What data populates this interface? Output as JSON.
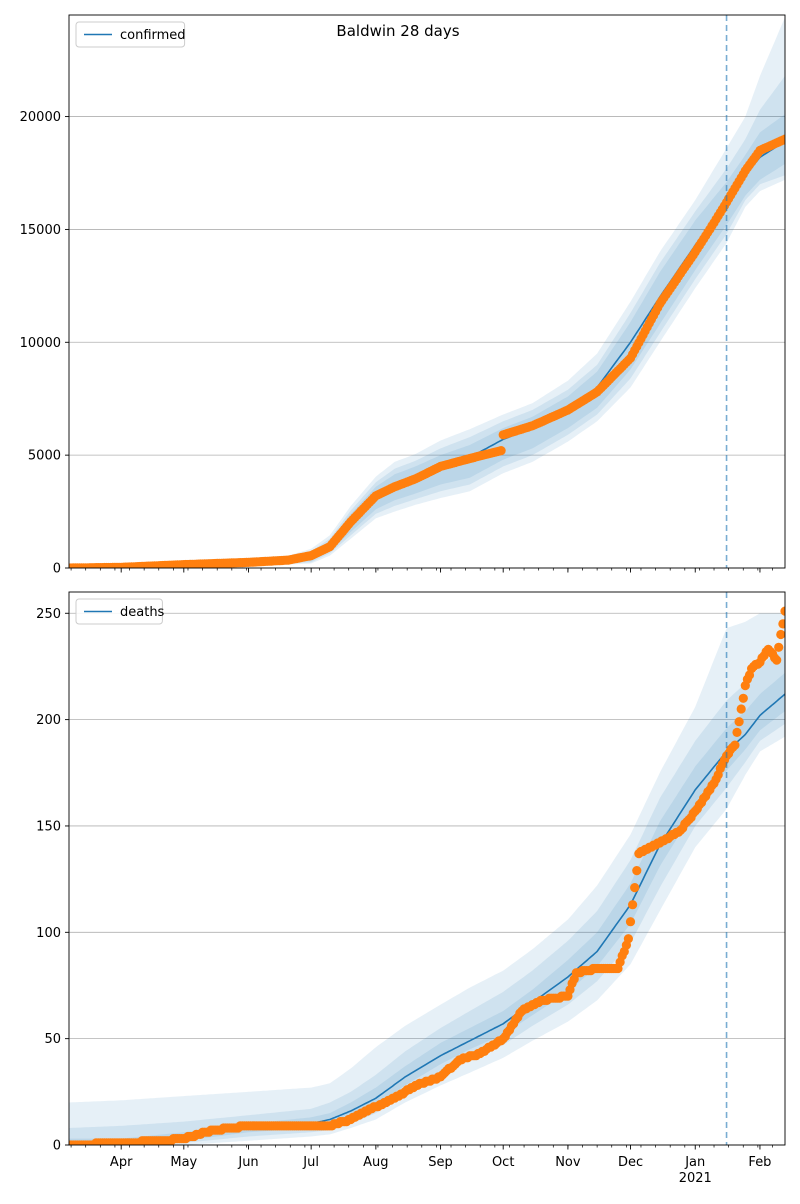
{
  "title": "Baldwin 28 days",
  "colors": {
    "model_line": "#1f77b4",
    "band": "#1f77b4",
    "observed": "#ff7f0e",
    "grid": "#b0b0b0",
    "divider": "#1f77b4"
  },
  "x_axis": {
    "start": "2020-03-07",
    "end": "2021-02-13",
    "divider_date": "2021-01-16",
    "month_ticks": [
      {
        "label": "Apr",
        "date": "2020-04-01"
      },
      {
        "label": "May",
        "date": "2020-05-01"
      },
      {
        "label": "Jun",
        "date": "2020-06-01"
      },
      {
        "label": "Jul",
        "date": "2020-07-01"
      },
      {
        "label": "Aug",
        "date": "2020-08-01"
      },
      {
        "label": "Sep",
        "date": "2020-09-01"
      },
      {
        "label": "Oct",
        "date": "2020-10-01"
      },
      {
        "label": "Nov",
        "date": "2020-11-01"
      },
      {
        "label": "Dec",
        "date": "2020-12-01"
      },
      {
        "label": "Jan",
        "date": "2021-01-01"
      },
      {
        "label": "Feb",
        "date": "2021-02-01"
      }
    ],
    "year_label": "2021",
    "year_label_date": "2021-01-01"
  },
  "chart_data": [
    {
      "type": "line",
      "legend": "confirmed",
      "legend_position": "upper-left",
      "grid": "y",
      "ylim": [
        0,
        24500
      ],
      "yticks": [
        0,
        5000,
        10000,
        15000,
        20000
      ],
      "model": {
        "dates": [
          "2020-03-07",
          "2020-04-01",
          "2020-05-01",
          "2020-06-01",
          "2020-06-20",
          "2020-07-01",
          "2020-07-10",
          "2020-07-20",
          "2020-08-01",
          "2020-08-10",
          "2020-08-20",
          "2020-09-01",
          "2020-09-15",
          "2020-10-01",
          "2020-10-15",
          "2020-11-01",
          "2020-11-15",
          "2020-12-01",
          "2020-12-15",
          "2021-01-01",
          "2021-01-16",
          "2021-01-25",
          "2021-02-01",
          "2021-02-13"
        ],
        "values": [
          0,
          30,
          150,
          250,
          350,
          500,
          1000,
          2100,
          3200,
          3700,
          4000,
          4500,
          4900,
          5700,
          6200,
          7000,
          8000,
          10000,
          12000,
          14300,
          16200,
          17400,
          18200,
          18900
        ],
        "bands": [
          {
            "lower": [
              0,
              0,
              50,
              150,
              250,
              300,
              750,
              1600,
              2600,
              3000,
              3300,
              3700,
              4000,
              4800,
              5300,
              6200,
              7100,
              8800,
              10800,
              13200,
              15200,
              16500,
              17200,
              17900
            ],
            "upper": [
              0,
              80,
              250,
              350,
              450,
              650,
              1200,
              2400,
              3600,
              4150,
              4500,
              5000,
              5450,
              6200,
              6700,
              7600,
              8700,
              10900,
              13100,
              15400,
              17100,
              18300,
              19300,
              20100
            ]
          },
          {
            "lower": [
              0,
              0,
              20,
              100,
              200,
              250,
              650,
              1450,
              2400,
              2750,
              3050,
              3400,
              3700,
              4500,
              5000,
              5900,
              6800,
              8400,
              10400,
              12800,
              14800,
              16300,
              17000,
              17400
            ],
            "upper": [
              0,
              100,
              300,
              400,
              500,
              750,
              1300,
              2550,
              3800,
              4400,
              4750,
              5300,
              5800,
              6500,
              7000,
              7900,
              9000,
              11300,
              13500,
              15800,
              17700,
              19000,
              20300,
              21800
            ]
          },
          {
            "lower": [
              0,
              0,
              0,
              50,
              150,
              200,
              550,
              1300,
              2200,
              2500,
              2800,
              3100,
              3400,
              4200,
              4700,
              5600,
              6500,
              8000,
              10000,
              12400,
              14400,
              16000,
              16700,
              17200
            ],
            "upper": [
              0,
              150,
              350,
              450,
              550,
              850,
              1450,
              2750,
              4050,
              4700,
              5050,
              5650,
              6150,
              6800,
              7300,
              8300,
              9500,
              11800,
              14000,
              16300,
              18600,
              20000,
              21800,
              24400
            ]
          }
        ]
      },
      "observed": {
        "dates": [
          "2020-03-07",
          "2020-04-01",
          "2020-05-01",
          "2020-06-01",
          "2020-06-20",
          "2020-07-01",
          "2020-07-10",
          "2020-07-20",
          "2020-08-01",
          "2020-08-10",
          "2020-08-20",
          "2020-09-01",
          "2020-09-15",
          "2020-09-30",
          "2020-10-01",
          "2020-10-15",
          "2020-11-01",
          "2020-11-15",
          "2020-12-01",
          "2020-12-15",
          "2021-01-01",
          "2021-01-10",
          "2021-01-16",
          "2021-01-25",
          "2021-02-01",
          "2021-02-13"
        ],
        "values": [
          0,
          30,
          150,
          250,
          350,
          550,
          950,
          2050,
          3200,
          3600,
          3950,
          4500,
          4850,
          5200,
          5900,
          6300,
          7000,
          7800,
          9300,
          11700,
          14000,
          15300,
          16200,
          17600,
          18500,
          19000
        ]
      }
    },
    {
      "type": "line",
      "legend": "deaths",
      "legend_position": "upper-left",
      "grid": "y",
      "ylim": [
        0,
        260
      ],
      "yticks": [
        0,
        50,
        100,
        150,
        200,
        250
      ],
      "model": {
        "dates": [
          "2020-03-07",
          "2020-04-01",
          "2020-05-01",
          "2020-06-01",
          "2020-07-01",
          "2020-07-10",
          "2020-07-20",
          "2020-08-01",
          "2020-08-15",
          "2020-09-01",
          "2020-09-15",
          "2020-10-01",
          "2020-10-15",
          "2020-11-01",
          "2020-11-15",
          "2020-12-01",
          "2020-12-15",
          "2021-01-01",
          "2021-01-16",
          "2021-01-25",
          "2021-02-01",
          "2021-02-13"
        ],
        "values": [
          0,
          1,
          4,
          8,
          10,
          12,
          16,
          22,
          32,
          42,
          49,
          57,
          67,
          79,
          91,
          113,
          141,
          167,
          185,
          193,
          202,
          212
        ],
        "bands": [
          {
            "lower": [
              0,
              0,
              2,
              6,
              8,
              9,
              13,
              19,
              28,
              38,
              45,
              52,
              61,
              72,
              84,
              104,
              131,
              158,
              176,
              186,
              195,
              204
            ],
            "upper": [
              3,
              3,
              6,
              10,
              13,
              15,
              20,
              27,
              37,
              48,
              55,
              63,
              73,
              87,
              100,
              123,
              152,
              178,
              196,
              204,
              212,
              222
            ]
          },
          {
            "lower": [
              0,
              0,
              1,
              4,
              6,
              7,
              10,
              15,
              24,
              33,
              40,
              47,
              56,
              66,
              77,
              95,
              121,
              150,
              168,
              180,
              190,
              198
            ],
            "upper": [
              8,
              9,
              11,
              14,
              17,
              20,
              25,
              33,
              44,
              55,
              63,
              72,
              82,
              96,
              110,
              134,
              163,
              190,
              209,
              217,
              225,
              235
            ]
          },
          {
            "lower": [
              0,
              0,
              0,
              2,
              4,
              5,
              8,
              12,
              20,
              28,
              34,
              41,
              49,
              58,
              68,
              85,
              110,
              140,
              158,
              174,
              185,
              192
            ],
            "upper": [
              20,
              21,
              23,
              25,
              27,
              29,
              36,
              46,
              56,
              66,
              74,
              82,
              92,
              106,
              122,
              146,
              175,
              206,
              243,
              246,
              250,
              250
            ]
          }
        ]
      },
      "observed": {
        "dates": [
          "2020-03-07",
          "2020-04-01",
          "2020-04-20",
          "2020-05-01",
          "2020-05-15",
          "2020-06-01",
          "2020-06-20",
          "2020-07-01",
          "2020-07-10",
          "2020-07-20",
          "2020-08-01",
          "2020-08-10",
          "2020-08-20",
          "2020-09-01",
          "2020-09-10",
          "2020-09-20",
          "2020-10-01",
          "2020-10-10",
          "2020-10-20",
          "2020-11-01",
          "2020-11-05",
          "2020-11-15",
          "2020-11-25",
          "2020-11-30",
          "2020-12-05",
          "2020-12-15",
          "2020-12-25",
          "2021-01-01",
          "2021-01-10",
          "2021-01-16",
          "2021-01-20",
          "2021-01-25",
          "2021-01-28",
          "2021-02-01",
          "2021-02-05",
          "2021-02-09",
          "2021-02-13"
        ],
        "values": [
          0,
          1,
          2,
          3,
          7,
          9,
          9,
          9,
          9,
          12,
          18,
          22,
          28,
          32,
          40,
          43,
          50,
          63,
          68,
          70,
          81,
          83,
          83,
          97,
          137,
          142,
          148,
          157,
          170,
          183,
          188,
          216,
          224,
          227,
          233,
          228,
          251
        ]
      }
    }
  ]
}
